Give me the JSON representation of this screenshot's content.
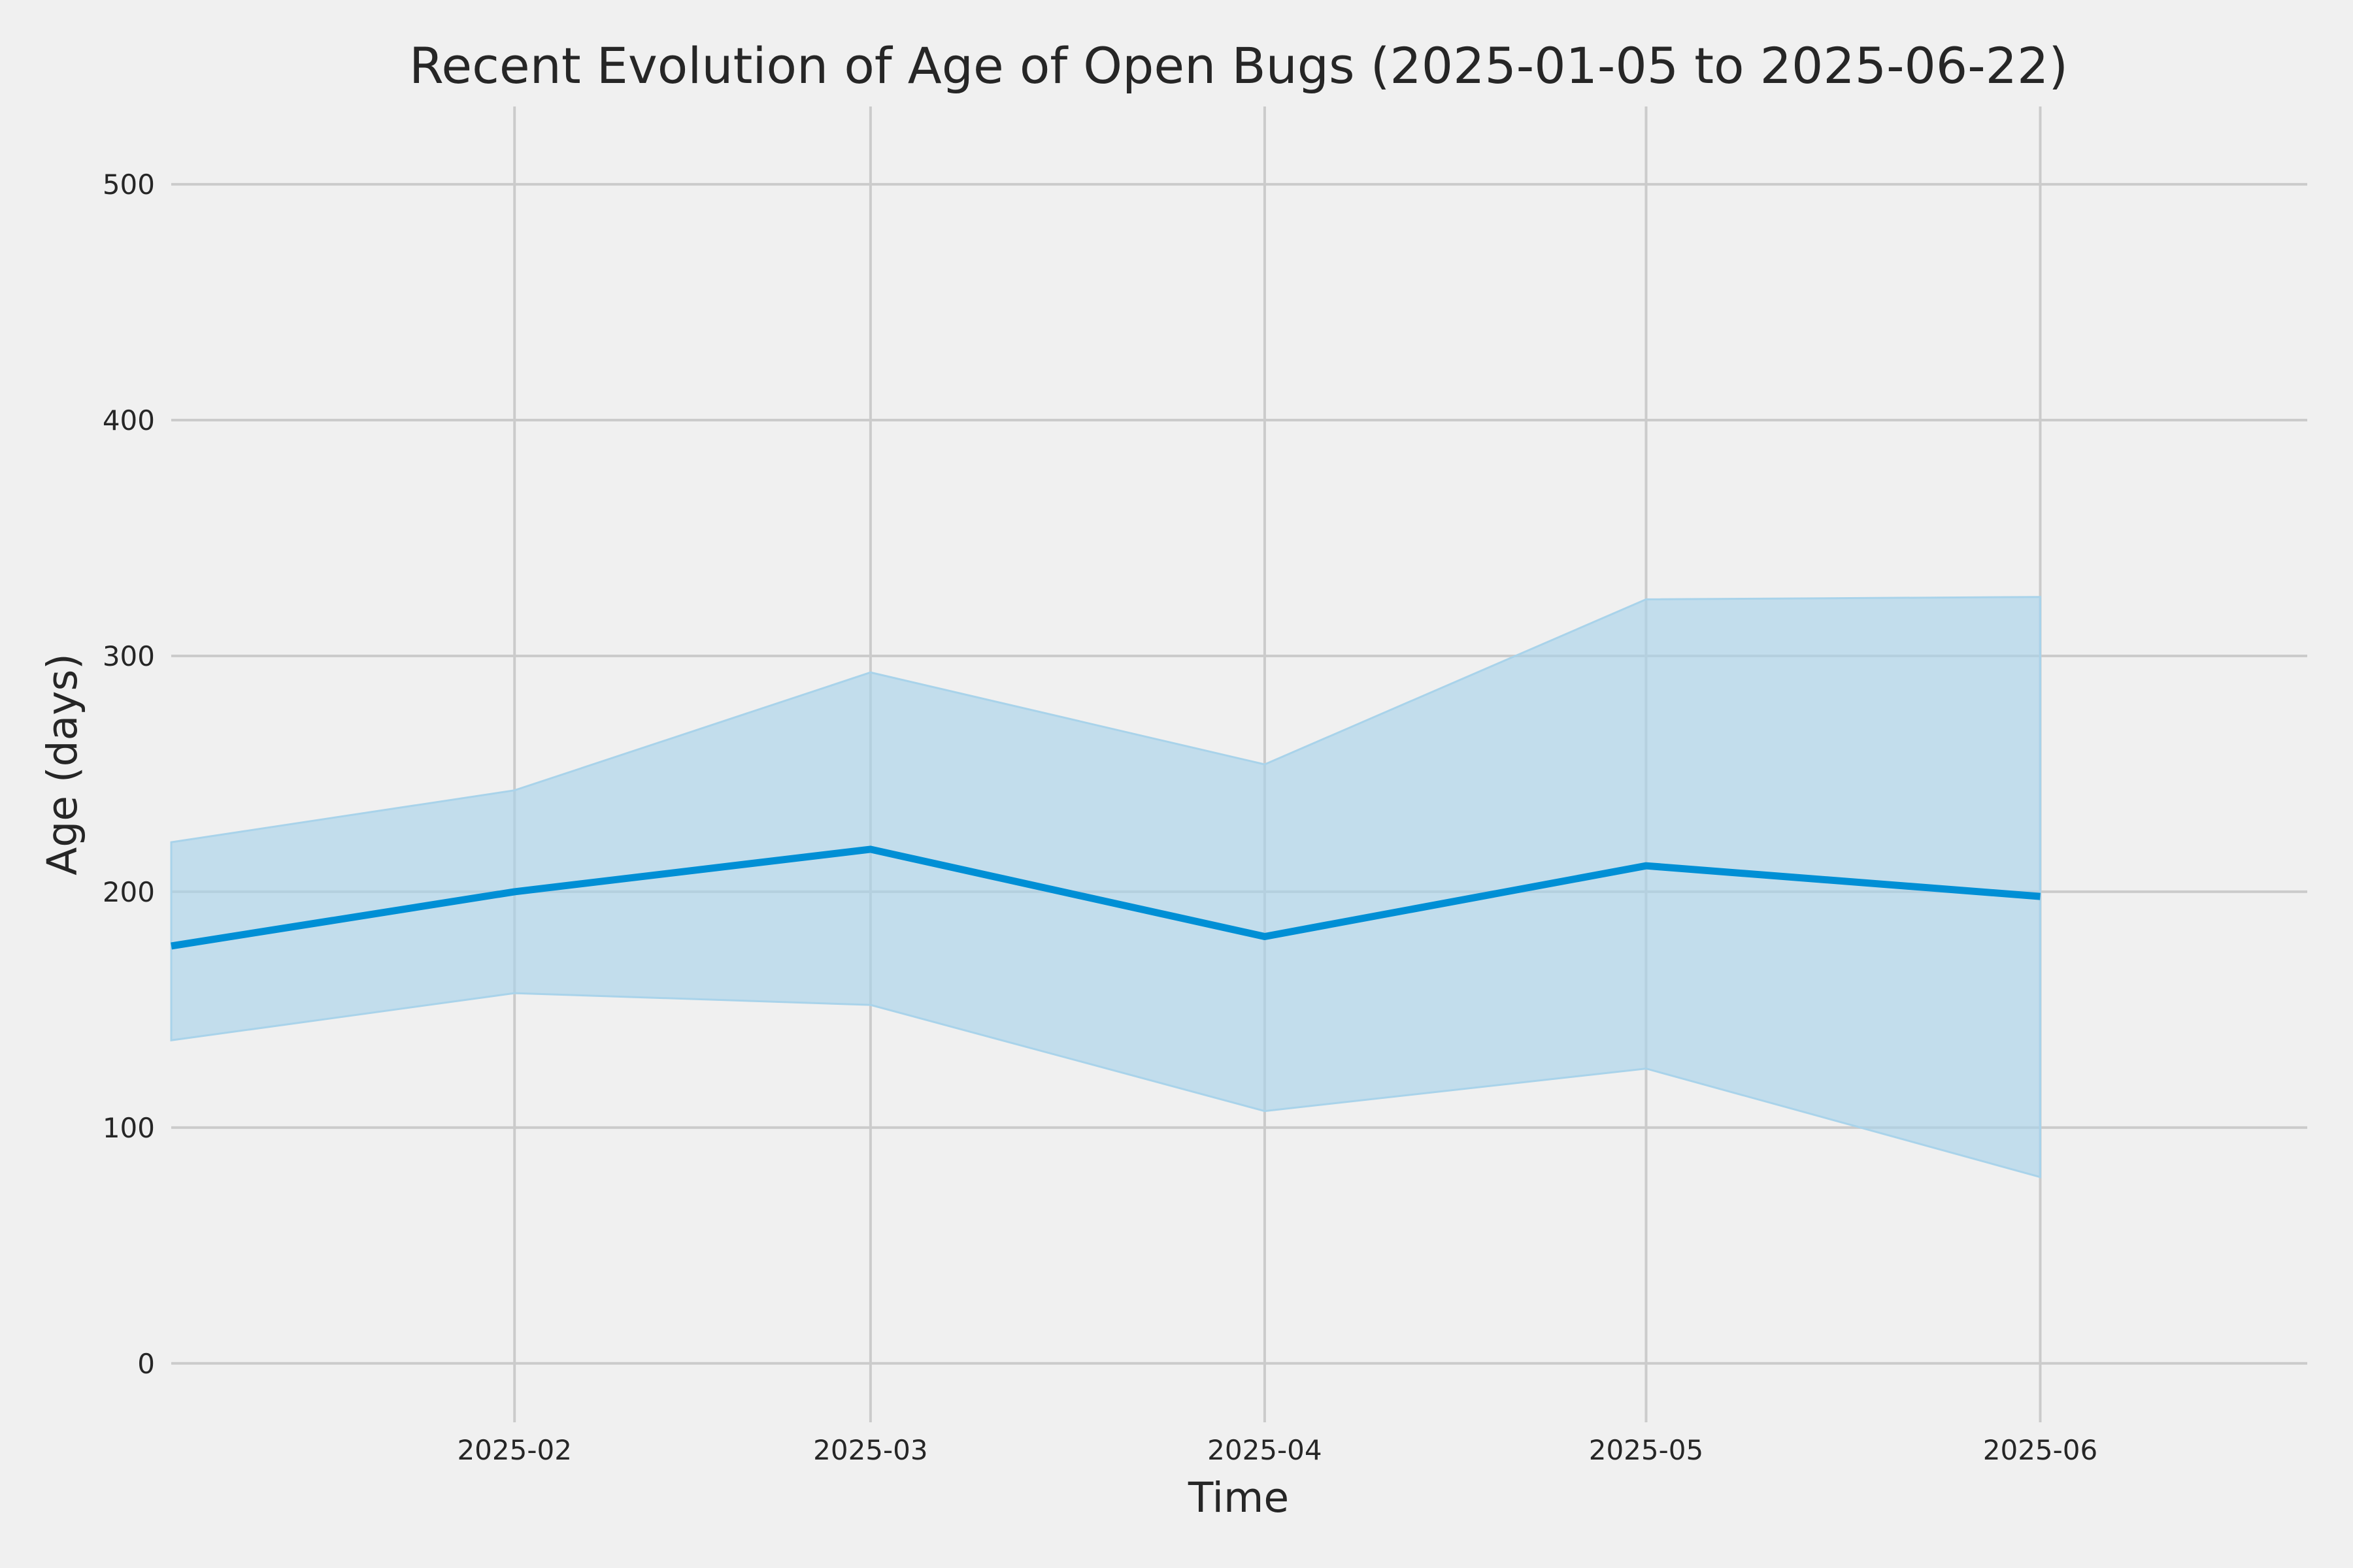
{
  "chart_data": {
    "type": "line",
    "title": "Recent Evolution of Age of Open Bugs (2025-01-05 to 2025-06-22)",
    "xlabel": "Time",
    "ylabel": "Age (days)",
    "x_range": [
      "2025-01-05",
      "2025-06-22"
    ],
    "xlim": [
      "2025-01-05",
      "2025-06-22"
    ],
    "ylim": [
      -25,
      533
    ],
    "grid": true,
    "x_ticks": [
      {
        "date": "2025-02-01",
        "label": "2025-02"
      },
      {
        "date": "2025-03-01",
        "label": "2025-03"
      },
      {
        "date": "2025-04-01",
        "label": "2025-04"
      },
      {
        "date": "2025-05-01",
        "label": "2025-05"
      },
      {
        "date": "2025-06-01",
        "label": "2025-06"
      }
    ],
    "y_ticks": [
      0,
      100,
      200,
      300,
      400,
      500
    ],
    "series": [
      {
        "color": "#008fd5",
        "x": [
          "2025-01-05",
          "2025-02-01",
          "2025-03-01",
          "2025-04-01",
          "2025-05-01",
          "2025-06-01"
        ],
        "values": [
          177,
          200,
          218,
          181,
          211,
          198
        ],
        "band_lower": [
          137,
          157,
          152,
          107,
          125,
          79
        ],
        "band_upper": [
          221,
          243,
          293,
          254,
          324,
          325
        ]
      }
    ],
    "band_color": "#a9d3ea"
  }
}
